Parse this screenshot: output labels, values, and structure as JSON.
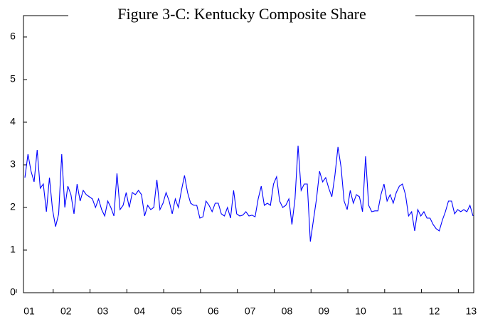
{
  "chart_data": {
    "type": "line",
    "title": "Figure 3-C: Kentucky Composite Share",
    "categories": [
      "01",
      null,
      null,
      null,
      null,
      null,
      null,
      null,
      null,
      null,
      null,
      null,
      "02",
      null,
      null,
      null,
      null,
      null,
      null,
      null,
      null,
      null,
      null,
      null,
      "03",
      null,
      null,
      null,
      null,
      null,
      null,
      null,
      null,
      null,
      null,
      null,
      "04",
      null,
      null,
      null,
      null,
      null,
      null,
      null,
      null,
      null,
      null,
      null,
      "05",
      null,
      null,
      null,
      null,
      null,
      null,
      null,
      null,
      null,
      null,
      null,
      "06",
      null,
      null,
      null,
      null,
      null,
      null,
      null,
      null,
      null,
      null,
      null,
      "07",
      null,
      null,
      null,
      null,
      null,
      null,
      null,
      null,
      null,
      null,
      null,
      "08",
      null,
      null,
      null,
      null,
      null,
      null,
      null,
      null,
      null,
      null,
      null,
      "09",
      null,
      null,
      null,
      null,
      null,
      null,
      null,
      null,
      null,
      null,
      null,
      "10",
      null,
      null,
      null,
      null,
      null,
      null,
      null,
      null,
      null,
      null,
      null,
      "11",
      null,
      null,
      null,
      null,
      null,
      null,
      null,
      null,
      null,
      null,
      null,
      "12",
      null,
      null,
      null,
      null,
      null,
      null,
      null,
      null,
      null,
      null,
      null,
      "13",
      null,
      null
    ],
    "values": [
      2.7,
      3.25,
      2.85,
      2.6,
      3.35,
      2.45,
      2.55,
      1.9,
      2.7,
      1.95,
      1.55,
      1.85,
      3.25,
      2.0,
      2.5,
      2.3,
      1.85,
      2.55,
      2.15,
      2.4,
      2.3,
      2.25,
      2.2,
      2.0,
      2.2,
      1.95,
      1.8,
      2.15,
      2.0,
      1.8,
      2.8,
      1.95,
      2.05,
      2.35,
      2.0,
      2.35,
      2.3,
      2.4,
      2.3,
      1.8,
      2.05,
      1.95,
      2.0,
      2.65,
      1.95,
      2.1,
      2.35,
      2.15,
      1.85,
      2.2,
      2.0,
      2.4,
      2.75,
      2.35,
      2.1,
      2.05,
      2.05,
      1.75,
      1.78,
      2.15,
      2.05,
      1.9,
      2.1,
      2.1,
      1.85,
      1.8,
      2.0,
      1.75,
      2.4,
      1.85,
      1.8,
      1.82,
      1.9,
      1.8,
      1.82,
      1.78,
      2.2,
      2.5,
      2.05,
      2.1,
      2.05,
      2.55,
      2.72,
      2.15,
      2.0,
      2.05,
      2.2,
      1.6,
      2.2,
      3.45,
      2.4,
      2.55,
      2.55,
      1.2,
      1.7,
      2.2,
      2.85,
      2.6,
      2.7,
      2.45,
      2.25,
      2.75,
      3.42,
      2.95,
      2.15,
      1.95,
      2.4,
      2.1,
      2.3,
      2.25,
      1.9,
      3.2,
      2.05,
      1.9,
      1.92,
      1.92,
      2.3,
      2.55,
      2.15,
      2.3,
      2.1,
      2.35,
      2.5,
      2.55,
      2.3,
      1.8,
      1.9,
      1.45,
      1.95,
      1.8,
      1.9,
      1.75,
      1.75,
      1.6,
      1.5,
      1.45,
      1.7,
      1.9,
      2.15,
      2.15,
      1.85,
      1.95,
      1.9,
      1.95,
      1.9,
      2.05,
      1.8
    ],
    "color": "#0000ff",
    "ylim": [
      0,
      6.5
    ],
    "yticks": [
      0,
      1,
      2,
      3,
      4,
      5,
      6
    ]
  }
}
